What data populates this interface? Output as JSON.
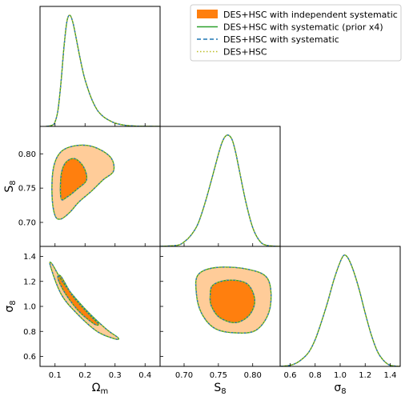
{
  "chart_data": {
    "type": "corner-plot",
    "grid": false,
    "legend_placement": "top-right",
    "series": [
      {
        "name": "DES+HSC with independent systematic",
        "style": "filled",
        "color": "#ff7f0e",
        "inner_color": "#ff7f0e",
        "outer_color": "#ffcc99"
      },
      {
        "name": "DES+HSC with systematic (prior x4)",
        "style": "solid",
        "color": "#2ca02c"
      },
      {
        "name": "DES+HSC with systematic",
        "style": "dashed",
        "color": "#1f77b4"
      },
      {
        "name": "DES+HSC",
        "style": "dotted",
        "color": "#bcbd22"
      }
    ],
    "parameters": [
      {
        "id": "om",
        "label": "Ωm",
        "range": [
          0.05,
          0.45
        ],
        "ticks": [
          0.1,
          0.2,
          0.3,
          0.4
        ],
        "tick_labels": [
          "0.1",
          "0.2",
          "0.3",
          "0.4"
        ]
      },
      {
        "id": "s8",
        "label": "S8",
        "range": [
          0.665,
          0.84
        ],
        "ticks": [
          0.7,
          0.75,
          0.8
        ],
        "tick_labels": [
          "0.70",
          "0.75",
          "0.80"
        ]
      },
      {
        "id": "sigma8",
        "label": "σ8",
        "range": [
          0.52,
          1.48
        ],
        "ticks": [
          0.6,
          0.8,
          1.0,
          1.2,
          1.4
        ],
        "tick_labels": [
          "0.6",
          "0.8",
          "1.0",
          "1.2",
          "1.4"
        ]
      }
    ],
    "marginals": {
      "om": {
        "x": [
          0.07,
          0.09,
          0.1,
          0.11,
          0.12,
          0.13,
          0.14,
          0.15,
          0.16,
          0.17,
          0.18,
          0.19,
          0.2,
          0.22,
          0.24,
          0.26,
          0.28,
          0.3,
          0.33,
          0.36,
          0.4,
          0.45
        ],
        "y": [
          0.0,
          0.01,
          0.04,
          0.15,
          0.4,
          0.72,
          0.95,
          1.0,
          0.93,
          0.8,
          0.66,
          0.53,
          0.42,
          0.26,
          0.15,
          0.09,
          0.055,
          0.03,
          0.012,
          0.004,
          0.001,
          0.0
        ]
      },
      "s8": {
        "x": [
          0.665,
          0.69,
          0.7,
          0.71,
          0.72,
          0.73,
          0.74,
          0.75,
          0.755,
          0.76,
          0.765,
          0.77,
          0.775,
          0.78,
          0.79,
          0.8,
          0.81,
          0.82,
          0.84
        ],
        "y": [
          0.0,
          0.01,
          0.04,
          0.1,
          0.2,
          0.38,
          0.6,
          0.83,
          0.93,
          0.99,
          1.0,
          0.96,
          0.85,
          0.7,
          0.4,
          0.17,
          0.05,
          0.01,
          0.0
        ]
      },
      "sigma8": {
        "x": [
          0.52,
          0.6,
          0.65,
          0.7,
          0.75,
          0.8,
          0.85,
          0.9,
          0.95,
          1.0,
          1.03,
          1.06,
          1.1,
          1.15,
          1.2,
          1.25,
          1.3,
          1.35,
          1.4,
          1.48
        ],
        "y": [
          0.0,
          0.01,
          0.03,
          0.07,
          0.13,
          0.24,
          0.4,
          0.58,
          0.78,
          0.94,
          1.0,
          0.98,
          0.88,
          0.7,
          0.48,
          0.28,
          0.13,
          0.05,
          0.01,
          0.0
        ]
      }
    },
    "contours": {
      "s8_vs_om": {
        "outer": [
          [
            0.1,
            0.71
          ],
          [
            0.12,
            0.705
          ],
          [
            0.15,
            0.715
          ],
          [
            0.18,
            0.73
          ],
          [
            0.22,
            0.745
          ],
          [
            0.26,
            0.762
          ],
          [
            0.295,
            0.775
          ],
          [
            0.285,
            0.795
          ],
          [
            0.23,
            0.81
          ],
          [
            0.17,
            0.812
          ],
          [
            0.12,
            0.803
          ],
          [
            0.095,
            0.78
          ],
          [
            0.09,
            0.74
          ]
        ],
        "inner": [
          [
            0.12,
            0.735
          ],
          [
            0.14,
            0.737
          ],
          [
            0.175,
            0.749
          ],
          [
            0.205,
            0.762
          ],
          [
            0.195,
            0.781
          ],
          [
            0.165,
            0.793
          ],
          [
            0.135,
            0.787
          ],
          [
            0.12,
            0.768
          ]
        ]
      },
      "sigma8_vs_om": {
        "outer": [
          [
            0.085,
            1.32
          ],
          [
            0.09,
            1.34
          ],
          [
            0.13,
            1.18
          ],
          [
            0.2,
            0.98
          ],
          [
            0.27,
            0.82
          ],
          [
            0.31,
            0.75
          ],
          [
            0.3,
            0.74
          ],
          [
            0.24,
            0.8
          ],
          [
            0.17,
            0.95
          ],
          [
            0.12,
            1.1
          ]
        ],
        "inner": [
          [
            0.11,
            1.22
          ],
          [
            0.12,
            1.24
          ],
          [
            0.16,
            1.08
          ],
          [
            0.22,
            0.92
          ],
          [
            0.245,
            0.86
          ],
          [
            0.23,
            0.86
          ],
          [
            0.18,
            0.96
          ],
          [
            0.135,
            1.1
          ]
        ]
      },
      "sigma8_vs_s8": {
        "outer": [
          [
            0.718,
            1.1
          ],
          [
            0.72,
            1.25
          ],
          [
            0.745,
            1.31
          ],
          [
            0.79,
            1.3
          ],
          [
            0.822,
            1.22
          ],
          [
            0.825,
            0.98
          ],
          [
            0.805,
            0.81
          ],
          [
            0.77,
            0.79
          ],
          [
            0.743,
            0.83
          ],
          [
            0.725,
            0.95
          ]
        ],
        "inner": [
          [
            0.738,
            1.08
          ],
          [
            0.742,
            1.17
          ],
          [
            0.765,
            1.21
          ],
          [
            0.792,
            1.18
          ],
          [
            0.803,
            1.05
          ],
          [
            0.795,
            0.93
          ],
          [
            0.775,
            0.87
          ],
          [
            0.752,
            0.91
          ],
          [
            0.74,
            1.0
          ]
        ]
      }
    }
  }
}
